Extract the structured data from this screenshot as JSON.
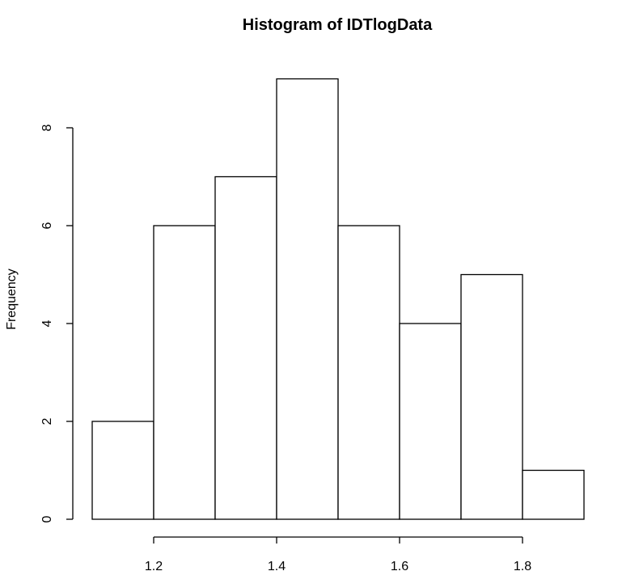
{
  "chart_data": {
    "type": "bar",
    "title": "Histogram of IDTlogData",
    "xlabel": "",
    "ylabel": "Frequency",
    "bins": [
      {
        "start": 1.1,
        "end": 1.2,
        "count": 2
      },
      {
        "start": 1.2,
        "end": 1.3,
        "count": 6
      },
      {
        "start": 1.3,
        "end": 1.4,
        "count": 7
      },
      {
        "start": 1.4,
        "end": 1.5,
        "count": 9
      },
      {
        "start": 1.5,
        "end": 1.6,
        "count": 6
      },
      {
        "start": 1.6,
        "end": 1.7,
        "count": 4
      },
      {
        "start": 1.7,
        "end": 1.8,
        "count": 5
      },
      {
        "start": 1.8,
        "end": 1.9,
        "count": 1
      }
    ],
    "x_ticks": [
      1.2,
      1.4,
      1.6,
      1.8
    ],
    "x_tick_labels": [
      "1.2",
      "1.4",
      "1.6",
      "1.8"
    ],
    "y_ticks": [
      0,
      2,
      4,
      6,
      8
    ],
    "y_tick_labels": [
      "0",
      "2",
      "4",
      "6",
      "8"
    ],
    "grid": false,
    "colors": {
      "bar_fill": "#ffffff",
      "bar_stroke": "#000000"
    }
  }
}
